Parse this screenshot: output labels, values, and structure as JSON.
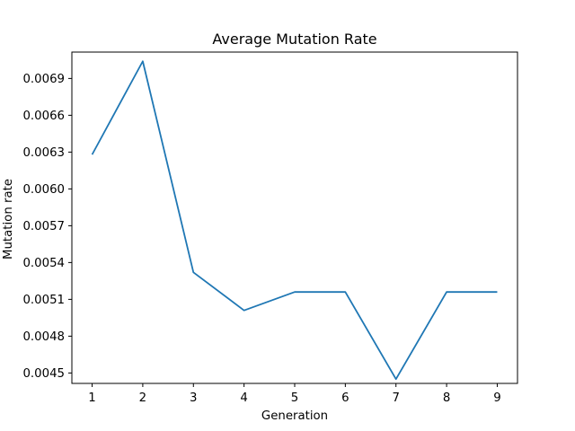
{
  "chart_data": {
    "type": "line",
    "title": "Average Mutation Rate",
    "xlabel": "Generation",
    "ylabel": "Mutation rate",
    "x": [
      1,
      2,
      3,
      4,
      5,
      6,
      7,
      8,
      9
    ],
    "series": [
      {
        "values": [
          0.00628,
          0.00704,
          0.00532,
          0.00501,
          0.00516,
          0.00516,
          0.00445,
          0.00516,
          0.00516
        ],
        "color": "#1f77b4"
      }
    ],
    "xticks": [
      "1",
      "2",
      "3",
      "4",
      "5",
      "6",
      "7",
      "8",
      "9"
    ],
    "yticks": [
      "0.0045",
      "0.0048",
      "0.0051",
      "0.0054",
      "0.0057",
      "0.0060",
      "0.0063",
      "0.0066",
      "0.0069"
    ],
    "ytick_values": [
      0.0045,
      0.0048,
      0.0051,
      0.0054,
      0.0057,
      0.006,
      0.0063,
      0.0066,
      0.0069
    ],
    "xlim": [
      0.6,
      9.4
    ],
    "ylim": [
      0.004415,
      0.007115
    ],
    "grid": false,
    "legend": "none"
  }
}
